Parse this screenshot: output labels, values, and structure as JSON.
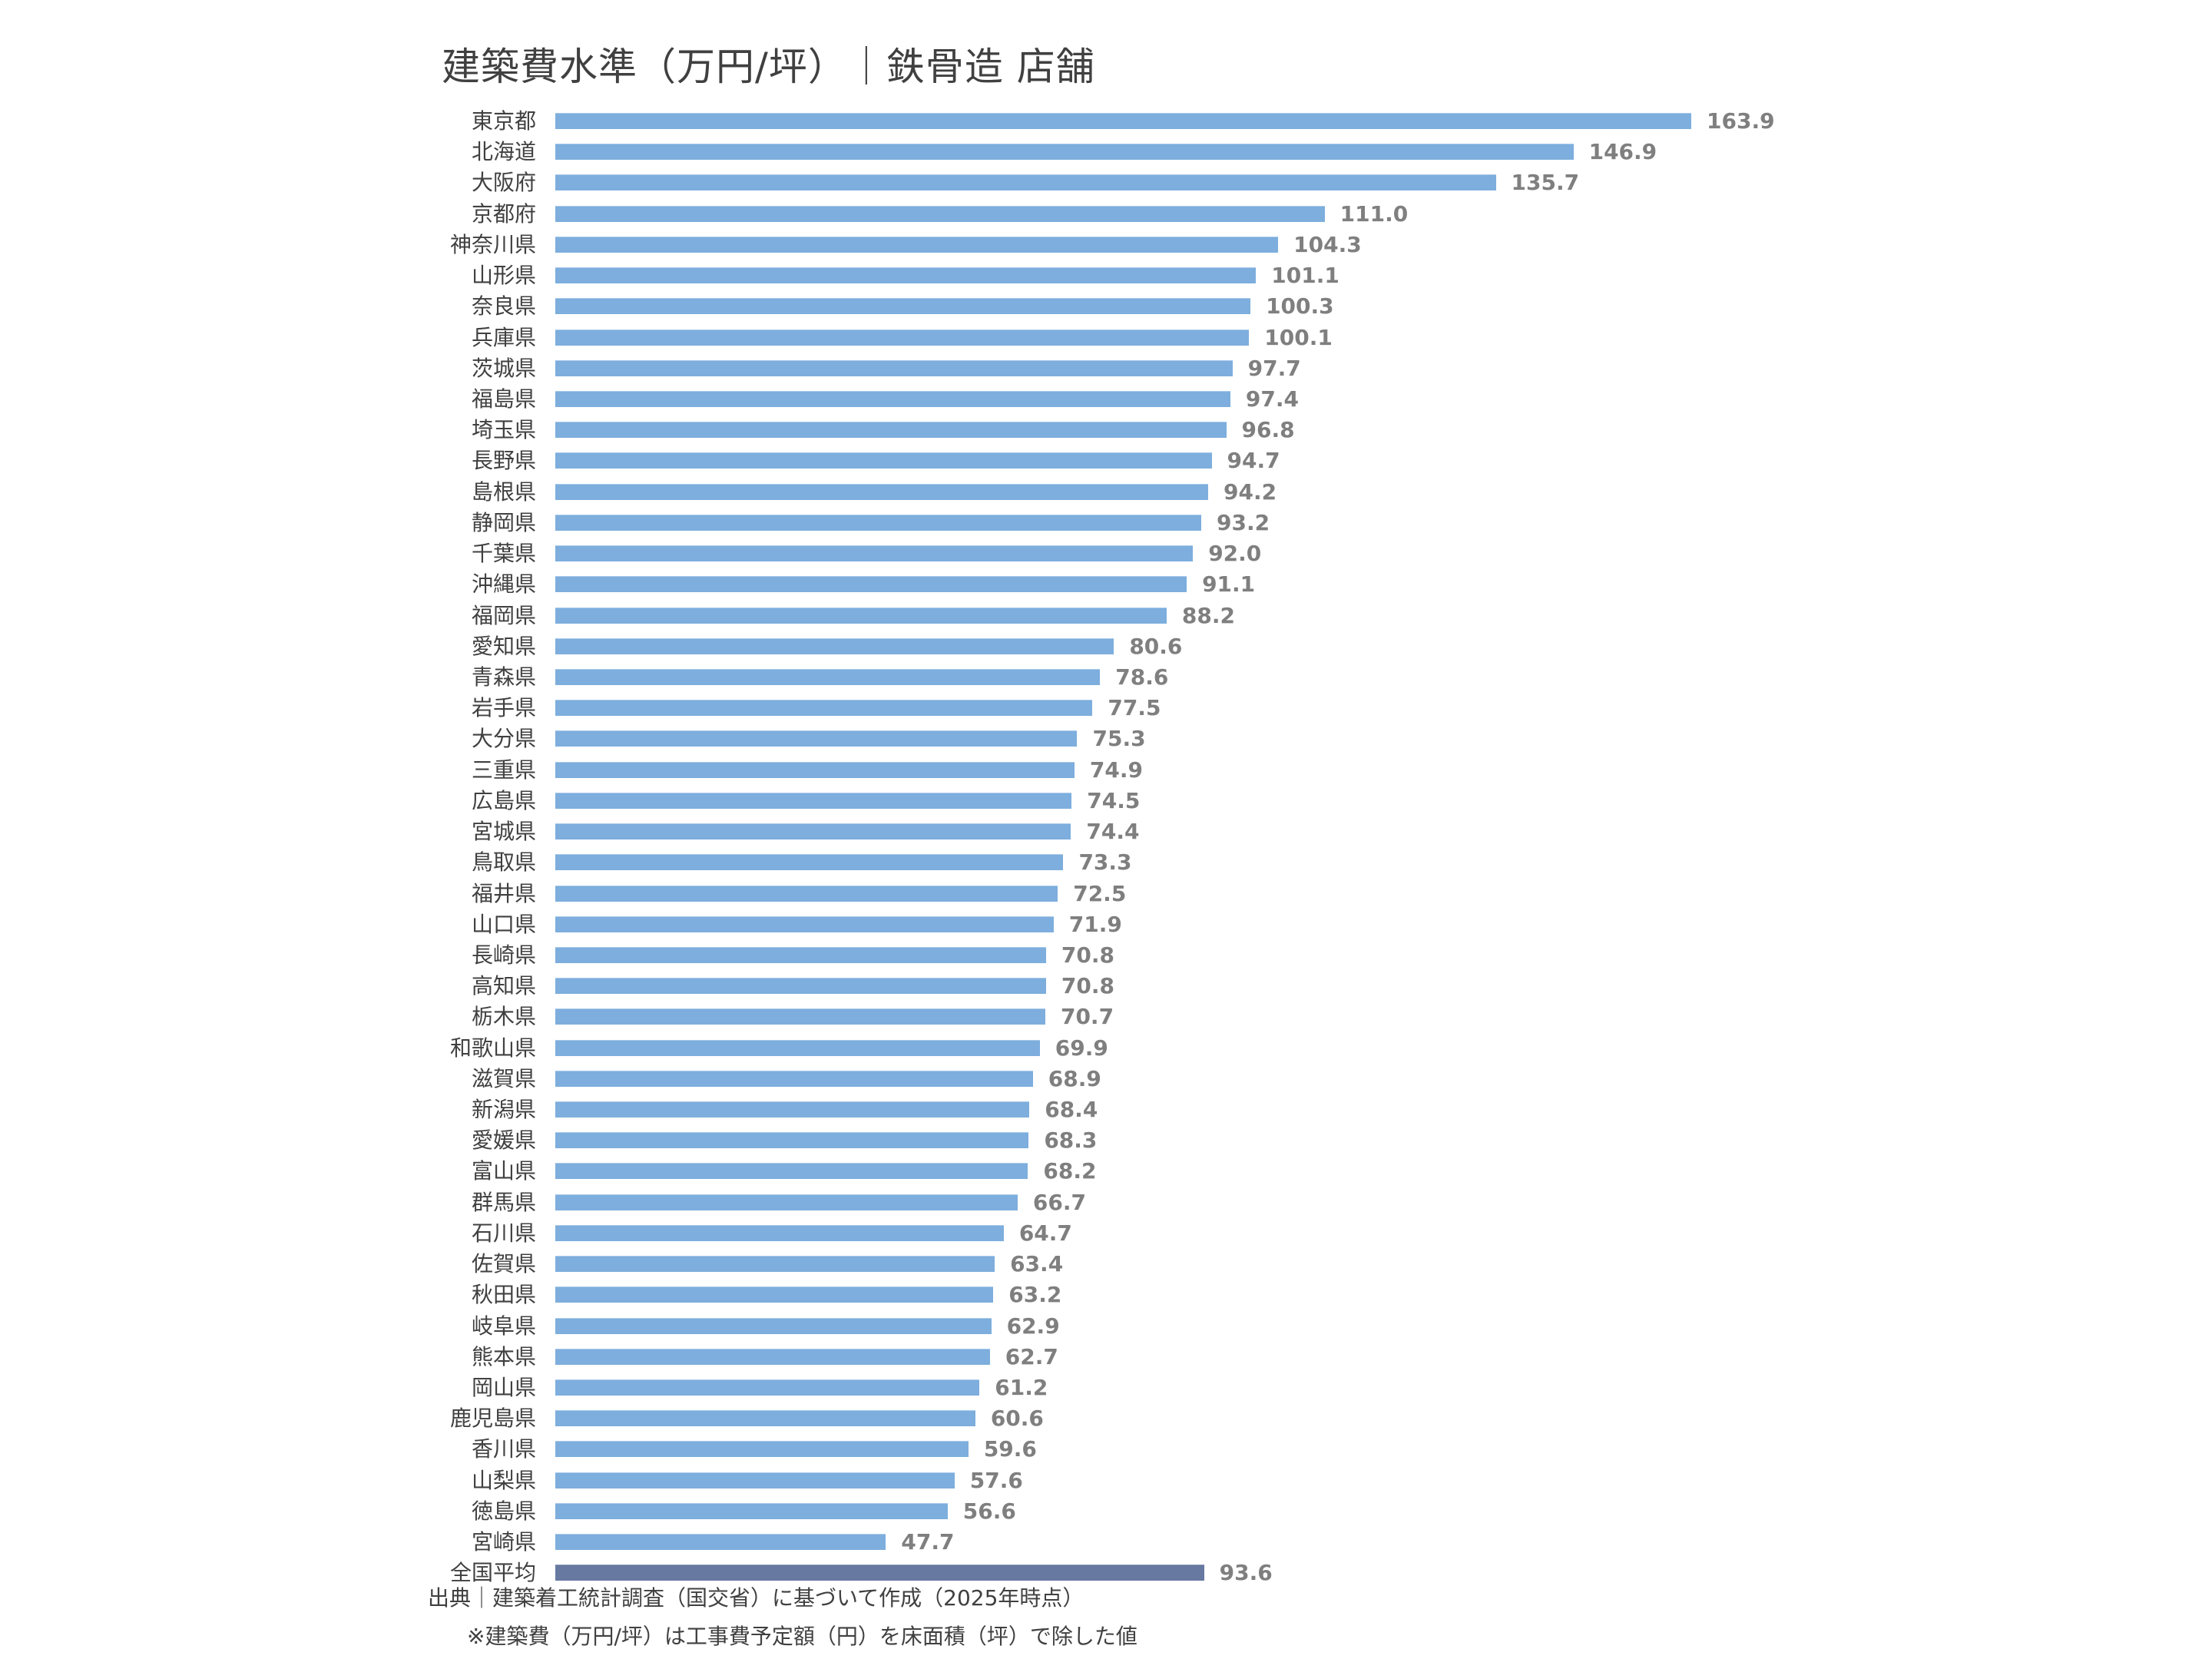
{
  "title": "建築費水準（万円/坪）｜鉄骨造 店舗",
  "footer": {
    "source": "出典｜建築着工統計調査（国交省）に基づいて作成（2025年時点）",
    "note": "※建築費（万円/坪）は工事費予定額（円）を床面積（坪）で除した値"
  },
  "colors": {
    "bar": "#7DAEDD",
    "average_bar": "#6779A0",
    "value_label": "#7F7F7F",
    "text": "#404040"
  },
  "chart_data": {
    "type": "bar",
    "orientation": "horizontal",
    "title": "建築費水準（万円/坪）｜鉄骨造 店舗",
    "xlabel": "",
    "ylabel": "",
    "grid": false,
    "legend": null,
    "categories": [
      "東京都",
      "北海道",
      "大阪府",
      "京都府",
      "神奈川県",
      "山形県",
      "奈良県",
      "兵庫県",
      "茨城県",
      "福島県",
      "埼玉県",
      "長野県",
      "島根県",
      "静岡県",
      "千葉県",
      "沖縄県",
      "福岡県",
      "愛知県",
      "青森県",
      "岩手県",
      "大分県",
      "三重県",
      "広島県",
      "宮城県",
      "鳥取県",
      "福井県",
      "山口県",
      "長崎県",
      "高知県",
      "栃木県",
      "和歌山県",
      "滋賀県",
      "新潟県",
      "愛媛県",
      "富山県",
      "群馬県",
      "石川県",
      "佐賀県",
      "秋田県",
      "岐阜県",
      "熊本県",
      "岡山県",
      "鹿児島県",
      "香川県",
      "山梨県",
      "徳島県",
      "宮崎県",
      "全国平均"
    ],
    "values": [
      163.9,
      146.9,
      135.7,
      111.0,
      104.3,
      101.1,
      100.3,
      100.1,
      97.7,
      97.4,
      96.8,
      94.7,
      94.2,
      93.2,
      92.0,
      91.1,
      88.2,
      80.6,
      78.6,
      77.5,
      75.3,
      74.9,
      74.5,
      74.4,
      73.3,
      72.5,
      71.9,
      70.8,
      70.8,
      70.7,
      69.9,
      68.9,
      68.4,
      68.3,
      68.2,
      66.7,
      64.7,
      63.4,
      63.2,
      62.9,
      62.7,
      61.2,
      60.6,
      59.6,
      57.6,
      56.6,
      47.7,
      93.6
    ],
    "value_labels": [
      "163.9",
      "146.9",
      "135.7",
      "111.0",
      "104.3",
      "101.1",
      "100.3",
      "100.1",
      "97.7",
      "97.4",
      "96.8",
      "94.7",
      "94.2",
      "93.2",
      "92.0",
      "91.1",
      "88.2",
      "80.6",
      "78.6",
      "77.5",
      "75.3",
      "74.9",
      "74.5",
      "74.4",
      "73.3",
      "72.5",
      "71.9",
      "70.8",
      "70.8",
      "70.7",
      "69.9",
      "68.9",
      "68.4",
      "68.3",
      "68.2",
      "66.7",
      "64.7",
      "63.4",
      "63.2",
      "62.9",
      "62.7",
      "61.2",
      "60.6",
      "59.6",
      "57.6",
      "56.6",
      "47.7",
      "93.6"
    ],
    "highlight": "全国平均",
    "notes": [
      "出典｜建築着工統計調査（国交省）に基づいて作成（2025年時点）",
      "※建築費（万円/坪）は工事費予定額（円）を床面積（坪）で除した値"
    ]
  }
}
